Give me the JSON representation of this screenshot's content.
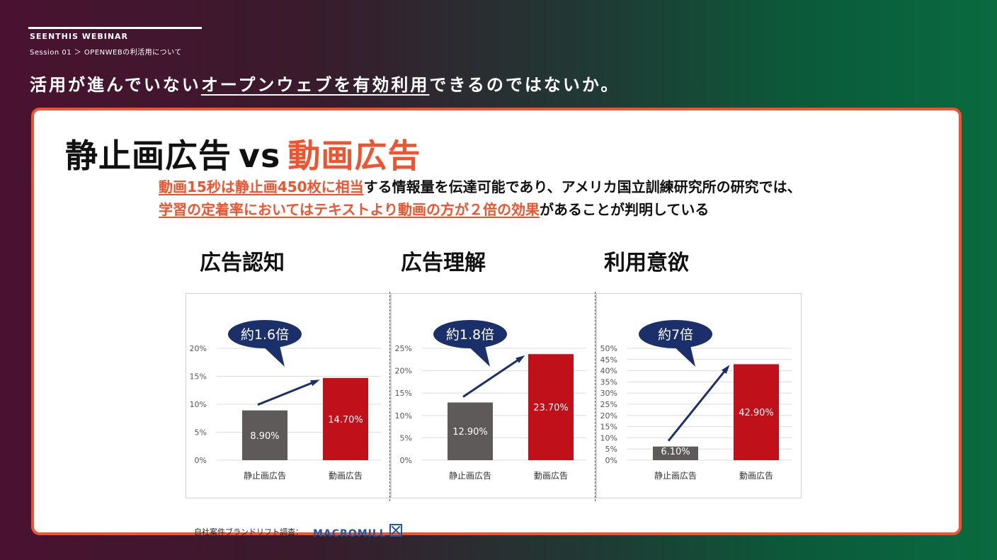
{
  "header": {
    "brand": "SEENTHIS WEBINAR",
    "breadcrumb": "Session 01 ＞ OPENWEBの利活用について",
    "headline_pre": "活用が進んでいない",
    "headline_ul": "オープンウェブを有効利用",
    "headline_post": "できるのではないか。"
  },
  "slide": {
    "title_a": "静止画広告",
    "title_vs": "vs",
    "title_b": "動画広告",
    "lead1_hl": "動画15秒は静止画450枚に相当",
    "lead1_rest": "する情報量を伝達可能であり、アメリカ国立訓練研究所の研究では、",
    "lead2_hl": "学習の定着率においてはテキストより動画の方が２倍の効果",
    "lead2_rest": "があることが判明している",
    "footer_label": "自社案件ブランドリフト調査：",
    "logo_text": "MACROMILL"
  },
  "chart_data": [
    {
      "type": "bar",
      "title": "広告認知",
      "categories": [
        "静止画広告",
        "動画広告"
      ],
      "values": [
        8.9,
        14.7
      ],
      "value_labels": [
        "8.90%",
        "14.70%"
      ],
      "ylim": [
        0,
        20
      ],
      "yticks": [
        "0%",
        "5%",
        "10%",
        "15%",
        "20%"
      ],
      "annotation": "約1.6倍",
      "colors": [
        "#5e5a5a",
        "#c0101a"
      ]
    },
    {
      "type": "bar",
      "title": "広告理解",
      "categories": [
        "静止画広告",
        "動画広告"
      ],
      "values": [
        12.9,
        23.7
      ],
      "value_labels": [
        "12.90%",
        "23.70%"
      ],
      "ylim": [
        0,
        25
      ],
      "yticks": [
        "0%",
        "5%",
        "10%",
        "15%",
        "20%",
        "25%"
      ],
      "annotation": "約1.8倍",
      "colors": [
        "#5e5a5a",
        "#c0101a"
      ]
    },
    {
      "type": "bar",
      "title": "利用意欲",
      "categories": [
        "静止画広告",
        "動画広告"
      ],
      "values": [
        6.1,
        42.9
      ],
      "value_labels": [
        "6.10%",
        "42.90%"
      ],
      "ylim": [
        0,
        50
      ],
      "yticks": [
        "0%",
        "5%",
        "10%",
        "15%",
        "20%",
        "25%",
        "30%",
        "35%",
        "40%",
        "45%",
        "50%"
      ],
      "annotation": "約7倍",
      "colors": [
        "#5e5a5a",
        "#c0101a"
      ]
    }
  ]
}
